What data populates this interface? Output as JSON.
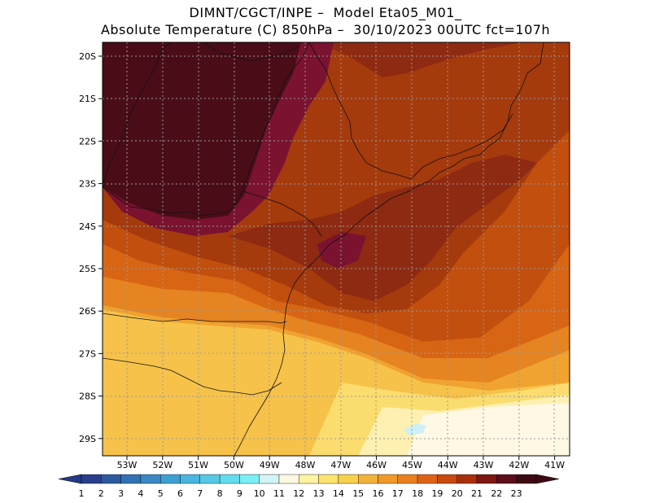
{
  "title_line1": "DIMNT/CGCT/INPE –  Model Eta05_M01_",
  "title_line2": "Absolute Temperature (C) 850hPa –  30/10/2023 00UTC fct=107h",
  "lat_labels": [
    "20S",
    "21S",
    "22S",
    "23S",
    "24S",
    "25S",
    "26S",
    "27S",
    "28S",
    "29S"
  ],
  "lon_labels": [
    "53W",
    "52W",
    "51W",
    "50W",
    "49W",
    "48W",
    "47W",
    "46W",
    "45W",
    "44W",
    "43W",
    "42W",
    "41W"
  ],
  "colorbar": {
    "labels": [
      "1",
      "2",
      "3",
      "4",
      "5",
      "6",
      "7",
      "8",
      "9",
      "10",
      "11",
      "12",
      "13",
      "14",
      "15",
      "16",
      "17",
      "18",
      "19",
      "20",
      "21",
      "22",
      "23"
    ],
    "colors": [
      "#2a3e8c",
      "#2d5a9e",
      "#3272b4",
      "#3a88c4",
      "#3e9fd2",
      "#48b6de",
      "#56c9e7",
      "#63dcee",
      "#7af0f5",
      "#d2f4f7",
      "#fff8e1",
      "#fff3a0",
      "#fde46c",
      "#f8d04c",
      "#f3b33a",
      "#f09a2a",
      "#ea7f1f",
      "#de6216",
      "#c84a10",
      "#a8300d",
      "#7e1712",
      "#5e0d1a",
      "#3e0a12"
    ],
    "under_color": "#233a86",
    "over_color": "#3e0a12"
  },
  "map_fields": [
    {
      "name": "t23",
      "color": "#4a0d17"
    },
    {
      "name": "t22",
      "color": "#7a1230"
    },
    {
      "name": "t21",
      "color": "#8e2a12"
    },
    {
      "name": "t20",
      "color": "#a53a0d"
    },
    {
      "name": "t19",
      "color": "#c24f0e"
    },
    {
      "name": "t18",
      "color": "#d86514"
    },
    {
      "name": "t17",
      "color": "#e58420"
    },
    {
      "name": "t16",
      "color": "#f0a330"
    },
    {
      "name": "t15",
      "color": "#f6c24a"
    },
    {
      "name": "t14",
      "color": "#fbdc6e"
    },
    {
      "name": "t13",
      "color": "#fdf0b0"
    },
    {
      "name": "t12",
      "color": "#fff8e4"
    },
    {
      "name": "t10",
      "color": "#cdeff5"
    }
  ]
}
